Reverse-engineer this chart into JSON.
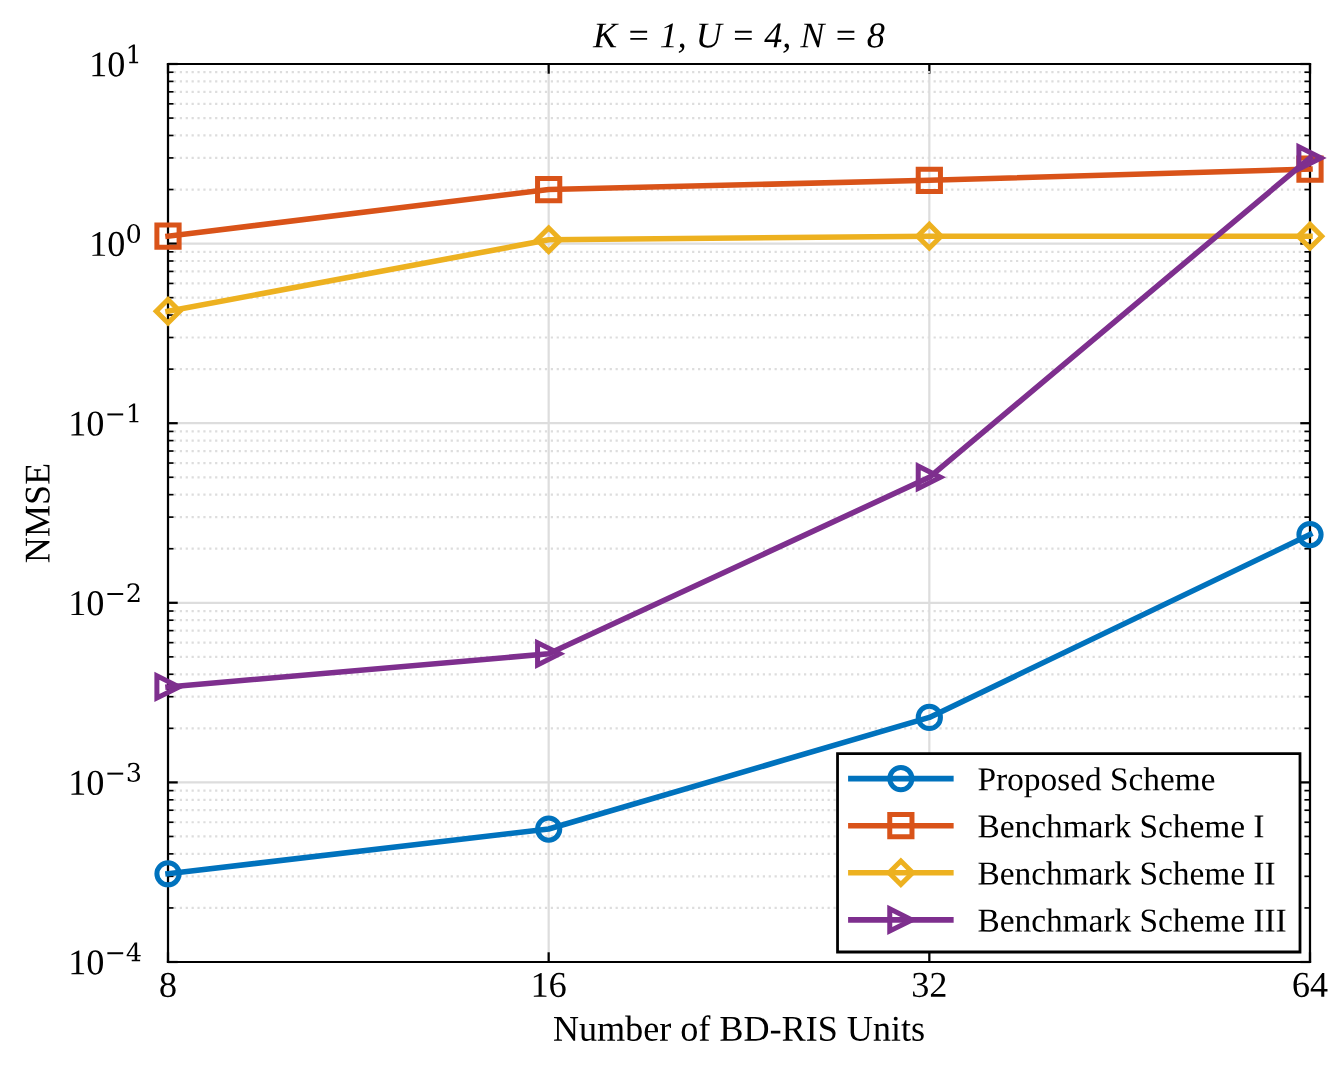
{
  "chart_data": {
    "type": "line",
    "title": "K = 1, U = 4, N = 8",
    "xlabel": "Number of BD-RIS Units",
    "ylabel": "NMSE",
    "x": [
      8,
      16,
      32,
      64
    ],
    "log": "xy",
    "xlim": [
      8,
      64
    ],
    "xticks": [
      8,
      16,
      32,
      64
    ],
    "ylim": [
      0.0001,
      10
    ],
    "yticks": [
      {
        "value": 0.0001,
        "label": "10$^{−4}$"
      },
      {
        "value": 0.001,
        "label": "10$^{−3}$"
      },
      {
        "value": 0.01,
        "label": "10$^{−2}$"
      },
      {
        "value": 0.1,
        "label": "10$^{−1}$"
      },
      {
        "value": 1,
        "label": "10$^{0}$"
      },
      {
        "value": 10,
        "label": "10$^{1}$"
      }
    ],
    "grid": true,
    "legend": "bottom right",
    "line_style": "solid",
    "series": [
      {
        "name": "Proposed Scheme",
        "color": "#0072bd",
        "marker": "circle",
        "values": [
          0.00031,
          0.00055,
          0.0023,
          0.024
        ]
      },
      {
        "name": "Benchmark Scheme I",
        "color": "#d95319",
        "marker": "square",
        "values": [
          1.1,
          2.0,
          2.25,
          2.6
        ]
      },
      {
        "name": "Benchmark Scheme II",
        "color": "#edb120",
        "marker": "diamond",
        "values": [
          0.42,
          1.05,
          1.1,
          1.1
        ]
      },
      {
        "name": "Benchmark Scheme III",
        "color": "#7e2f8e",
        "marker": "triangle",
        "values": [
          0.0034,
          0.0052,
          0.05,
          3.0
        ]
      }
    ]
  }
}
